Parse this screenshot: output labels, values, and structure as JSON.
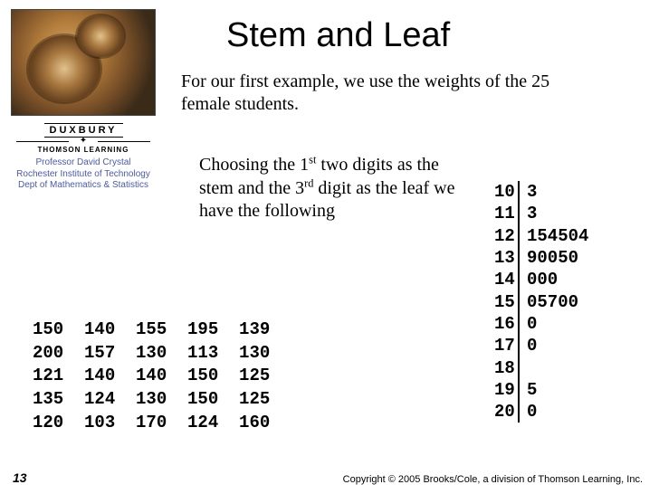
{
  "title": "Stem and Leaf",
  "intro": "For our first example, we use the weights of the 25 female students.",
  "desc_parts": {
    "p1": "Choosing the 1",
    "sup1": "st",
    "p2": " two digits as the stem and the 3",
    "sup2": "rd",
    "p3": " digit as the leaf we have the following"
  },
  "publisher": {
    "duxbury": "DUXBURY",
    "star": "✦",
    "thomson": "THOMSON LEARNING",
    "prof": "Professor David Crystal",
    "inst": "Rochester Institute of Technology",
    "dept": "Dept of Mathematics & Statistics"
  },
  "data_rows": [
    [
      "150",
      "140",
      "155",
      "195",
      "139"
    ],
    [
      "200",
      "157",
      "130",
      "113",
      "130"
    ],
    [
      "121",
      "140",
      "140",
      "150",
      "125"
    ],
    [
      "135",
      "124",
      "130",
      "150",
      "125"
    ],
    [
      "120",
      "103",
      "170",
      "124",
      "160"
    ]
  ],
  "stemleaf": [
    {
      "stem": "10",
      "leaf": "3"
    },
    {
      "stem": "11",
      "leaf": "3"
    },
    {
      "stem": "12",
      "leaf": "154504"
    },
    {
      "stem": "13",
      "leaf": "90050"
    },
    {
      "stem": "14",
      "leaf": "000"
    },
    {
      "stem": "15",
      "leaf": "05700"
    },
    {
      "stem": "16",
      "leaf": "0"
    },
    {
      "stem": "17",
      "leaf": "0"
    },
    {
      "stem": "18",
      "leaf": ""
    },
    {
      "stem": "19",
      "leaf": "5"
    },
    {
      "stem": "20",
      "leaf": "0"
    }
  ],
  "page_number": "13",
  "copyright": "Copyright © 2005 Brooks/Cole, a division of Thomson Learning, Inc."
}
